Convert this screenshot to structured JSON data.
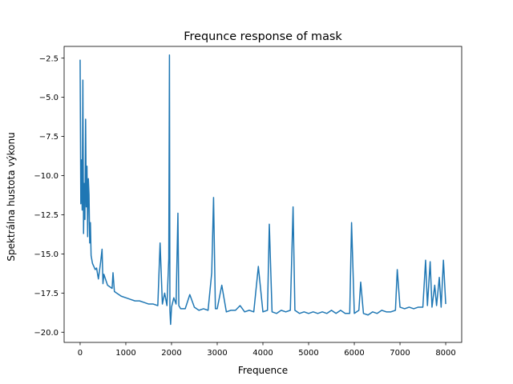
{
  "chart_data": {
    "type": "line",
    "title": "Frequnce response of mask",
    "xlabel": "Frequence",
    "ylabel": "Spektrálna hustota výkonu",
    "xlim": [
      -350,
      8350
    ],
    "ylim": [
      -20.65,
      -1.75
    ],
    "xticks": [
      0,
      1000,
      2000,
      3000,
      4000,
      5000,
      6000,
      7000,
      8000
    ],
    "xtick_labels": [
      "0",
      "1000",
      "2000",
      "3000",
      "4000",
      "5000",
      "6000",
      "7000",
      "8000"
    ],
    "yticks": [
      -2.5,
      -5.0,
      -7.5,
      -10.0,
      -12.5,
      -15.0,
      -17.5,
      -20.0
    ],
    "ytick_labels": [
      "−2.5",
      "−5.0",
      "−7.5",
      "−10.0",
      "−12.5",
      "−15.0",
      "−17.5",
      "−20.0"
    ],
    "grid": false,
    "series": [
      {
        "color": "#1f77b4",
        "x": [
          0,
          15,
          30,
          45,
          60,
          75,
          90,
          105,
          120,
          135,
          150,
          165,
          180,
          195,
          210,
          225,
          240,
          270,
          300,
          330,
          360,
          400,
          450,
          480,
          500,
          520,
          600,
          700,
          720,
          750,
          800,
          900,
          1000,
          1100,
          1200,
          1300,
          1400,
          1500,
          1600,
          1700,
          1750,
          1800,
          1850,
          1900,
          1940,
          1955,
          1965,
          1980,
          2000,
          2050,
          2100,
          2140,
          2160,
          2200,
          2300,
          2400,
          2500,
          2600,
          2700,
          2800,
          2880,
          2920,
          2960,
          3000,
          3100,
          3200,
          3300,
          3400,
          3500,
          3600,
          3700,
          3800,
          3900,
          4000,
          4100,
          4140,
          4200,
          4300,
          4400,
          4500,
          4600,
          4660,
          4700,
          4800,
          4900,
          5000,
          5100,
          5200,
          5300,
          5400,
          5500,
          5600,
          5700,
          5800,
          5900,
          5940,
          6000,
          6100,
          6140,
          6200,
          6300,
          6400,
          6500,
          6600,
          6700,
          6800,
          6900,
          6940,
          7000,
          7100,
          7200,
          7300,
          7400,
          7500,
          7560,
          7600,
          7660,
          7700,
          7760,
          7800,
          7860,
          7900,
          7950,
          8000
        ],
        "y": [
          -2.6,
          -11.8,
          -9.0,
          -12.2,
          -3.9,
          -13.7,
          -10.5,
          -12.8,
          -6.4,
          -12.0,
          -9.4,
          -13.9,
          -10.2,
          -11.2,
          -14.3,
          -13.0,
          -15.1,
          -15.6,
          -15.8,
          -16.0,
          -15.9,
          -16.6,
          -15.5,
          -14.7,
          -16.9,
          -16.3,
          -17.0,
          -17.2,
          -16.2,
          -17.4,
          -17.5,
          -17.7,
          -17.8,
          -17.9,
          -18.0,
          -18.0,
          -18.1,
          -18.2,
          -18.2,
          -18.3,
          -14.3,
          -18.2,
          -17.5,
          -18.3,
          -15.3,
          -2.3,
          -18.6,
          -19.5,
          -18.4,
          -17.8,
          -18.2,
          -12.4,
          -18.3,
          -18.5,
          -18.5,
          -17.6,
          -18.4,
          -18.6,
          -18.5,
          -18.6,
          -16.2,
          -11.4,
          -18.5,
          -18.5,
          -17.0,
          -18.7,
          -18.6,
          -18.6,
          -18.3,
          -18.7,
          -18.6,
          -18.7,
          -15.8,
          -18.7,
          -18.6,
          -13.1,
          -18.7,
          -18.8,
          -18.6,
          -18.7,
          -18.6,
          -12.0,
          -18.6,
          -18.8,
          -18.7,
          -18.8,
          -18.7,
          -18.8,
          -18.7,
          -18.8,
          -18.6,
          -18.8,
          -18.6,
          -18.8,
          -18.8,
          -13.0,
          -18.8,
          -18.6,
          -16.8,
          -18.8,
          -18.9,
          -18.7,
          -18.8,
          -18.6,
          -18.7,
          -18.7,
          -18.6,
          -16.0,
          -18.4,
          -18.5,
          -18.4,
          -18.5,
          -18.4,
          -18.4,
          -15.4,
          -18.3,
          -15.5,
          -18.4,
          -17.0,
          -18.3,
          -16.5,
          -18.4,
          -15.4,
          -18.2
        ]
      }
    ]
  }
}
